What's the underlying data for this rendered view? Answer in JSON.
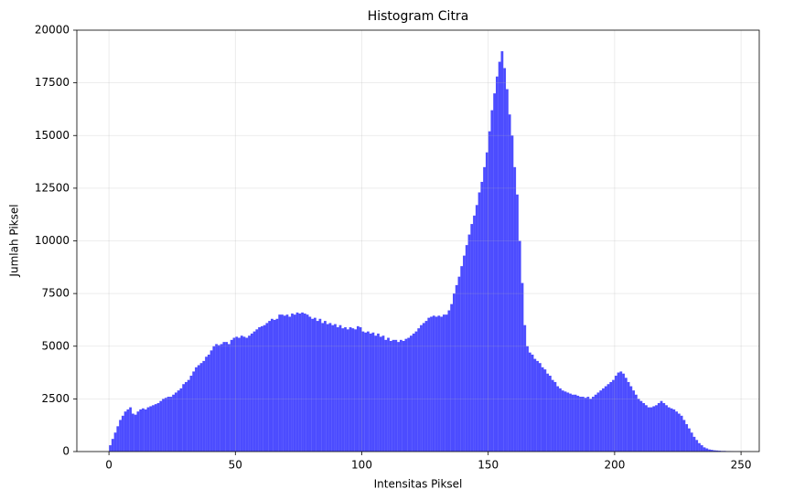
{
  "chart_data": {
    "type": "histogram",
    "title": "Histogram Citra",
    "x_label": "Intensitas Piksel",
    "y_label": "Jumlah Piksel",
    "bins": [
      0,
      1,
      2,
      3,
      4,
      5,
      6,
      7,
      8,
      9,
      10,
      11,
      12,
      13,
      14,
      15,
      16,
      17,
      18,
      19,
      20,
      21,
      22,
      23,
      24,
      25,
      26,
      27,
      28,
      29,
      30,
      31,
      32,
      33,
      34,
      35,
      36,
      37,
      38,
      39,
      40,
      41,
      42,
      43,
      44,
      45,
      46,
      47,
      48,
      49,
      50,
      51,
      52,
      53,
      54,
      55,
      56,
      57,
      58,
      59,
      60,
      61,
      62,
      63,
      64,
      65,
      66,
      67,
      68,
      69,
      70,
      71,
      72,
      73,
      74,
      75,
      76,
      77,
      78,
      79,
      80,
      81,
      82,
      83,
      84,
      85,
      86,
      87,
      88,
      89,
      90,
      91,
      92,
      93,
      94,
      95,
      96,
      97,
      98,
      99,
      100,
      101,
      102,
      103,
      104,
      105,
      106,
      107,
      108,
      109,
      110,
      111,
      112,
      113,
      114,
      115,
      116,
      117,
      118,
      119,
      120,
      121,
      122,
      123,
      124,
      125,
      126,
      127,
      128,
      129,
      130,
      131,
      132,
      133,
      134,
      135,
      136,
      137,
      138,
      139,
      140,
      141,
      142,
      143,
      144,
      145,
      146,
      147,
      148,
      149,
      150,
      151,
      152,
      153,
      154,
      155,
      156,
      157,
      158,
      159,
      160,
      161,
      162,
      163,
      164,
      165,
      166,
      167,
      168,
      169,
      170,
      171,
      172,
      173,
      174,
      175,
      176,
      177,
      178,
      179,
      180,
      181,
      182,
      183,
      184,
      185,
      186,
      187,
      188,
      189,
      190,
      191,
      192,
      193,
      194,
      195,
      196,
      197,
      198,
      199,
      200,
      201,
      202,
      203,
      204,
      205,
      206,
      207,
      208,
      209,
      210,
      211,
      212,
      213,
      214,
      215,
      216,
      217,
      218,
      219,
      220,
      221,
      222,
      223,
      224,
      225,
      226,
      227,
      228,
      229,
      230,
      231,
      232,
      233,
      234,
      235,
      236,
      237,
      238,
      239,
      240,
      241,
      242,
      243,
      244,
      245,
      246,
      247,
      248,
      249,
      250,
      251,
      252,
      253,
      254,
      255,
      256
    ],
    "counts": [
      300,
      600,
      900,
      1200,
      1500,
      1700,
      1900,
      2000,
      2100,
      1800,
      1750,
      1900,
      2000,
      2050,
      2000,
      2100,
      2150,
      2200,
      2250,
      2300,
      2400,
      2500,
      2550,
      2600,
      2600,
      2700,
      2800,
      2900,
      3000,
      3200,
      3300,
      3400,
      3600,
      3800,
      4000,
      4100,
      4200,
      4300,
      4500,
      4600,
      4800,
      5000,
      5100,
      5050,
      5100,
      5200,
      5200,
      5100,
      5300,
      5400,
      5450,
      5400,
      5500,
      5450,
      5400,
      5500,
      5600,
      5700,
      5800,
      5900,
      5950,
      6000,
      6100,
      6200,
      6300,
      6250,
      6300,
      6500,
      6500,
      6450,
      6500,
      6400,
      6550,
      6500,
      6600,
      6550,
      6600,
      6550,
      6500,
      6400,
      6300,
      6350,
      6200,
      6300,
      6100,
      6200,
      6050,
      6100,
      6000,
      6050,
      5900,
      6000,
      5850,
      5900,
      5800,
      5900,
      5850,
      5800,
      5950,
      5900,
      5700,
      5650,
      5700,
      5600,
      5650,
      5500,
      5600,
      5450,
      5500,
      5300,
      5400,
      5250,
      5300,
      5300,
      5200,
      5300,
      5250,
      5350,
      5400,
      5500,
      5600,
      5700,
      5850,
      6000,
      6100,
      6200,
      6350,
      6400,
      6450,
      6400,
      6450,
      6400,
      6500,
      6500,
      6700,
      7000,
      7500,
      7900,
      8300,
      8800,
      9300,
      9800,
      10300,
      10800,
      11200,
      11700,
      12300,
      12800,
      13500,
      14200,
      15200,
      16200,
      17000,
      17800,
      18500,
      19000,
      18200,
      17200,
      16000,
      15000,
      13500,
      12200,
      10000,
      8000,
      6000,
      5000,
      4700,
      4600,
      4400,
      4300,
      4200,
      4000,
      3900,
      3700,
      3600,
      3400,
      3300,
      3100,
      3000,
      2900,
      2850,
      2800,
      2750,
      2700,
      2700,
      2650,
      2600,
      2600,
      2550,
      2600,
      2500,
      2600,
      2700,
      2800,
      2900,
      3000,
      3100,
      3200,
      3300,
      3400,
      3600,
      3750,
      3800,
      3700,
      3500,
      3300,
      3100,
      2900,
      2700,
      2500,
      2400,
      2300,
      2200,
      2100,
      2100,
      2150,
      2200,
      2300,
      2400,
      2300,
      2200,
      2100,
      2050,
      2000,
      1900,
      1800,
      1700,
      1500,
      1300,
      1100,
      900,
      700,
      550,
      400,
      300,
      200,
      150,
      100,
      80,
      60,
      50,
      40,
      30,
      30,
      20,
      20,
      15,
      10,
      10,
      10,
      5,
      5,
      5,
      5,
      0,
      0
    ],
    "color": "#0000ff",
    "alpha": 0.7,
    "xlim": [
      -12.7,
      257.2
    ],
    "xticks": [
      0,
      50,
      100,
      150,
      200,
      250
    ],
    "ylim": [
      0,
      20000
    ],
    "yticks": [
      0,
      2500,
      5000,
      7500,
      10000,
      12500,
      15000,
      17500,
      20000
    ],
    "grid": true
  }
}
